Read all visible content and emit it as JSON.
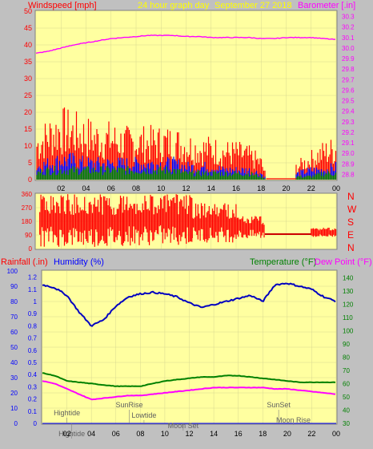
{
  "header": {
    "title": "24 hour graph day",
    "date": "September 27 2018",
    "left_axis_title": "Windspeed [mph]",
    "right_axis_title": "Barometer [.in]"
  },
  "direction_labels": [
    "N",
    "W",
    "S",
    "E",
    "N"
  ],
  "bottom_titles": {
    "rainfall": "Rainfall (.in)",
    "humidity": "Humidity (%)",
    "temperature": "Temperature (°F)",
    "dewpoint": "Dew Point (°F)"
  },
  "events": [
    {
      "label": "Hightide",
      "hour": 2.0
    },
    {
      "label": "SunRise",
      "hour": 7.1
    },
    {
      "label": "Lowtide",
      "hour": 8.3
    },
    {
      "label": "Moon Set",
      "hour": 11.5
    },
    {
      "label": "SunSet",
      "hour": 19.3
    },
    {
      "label": "Moon Rise",
      "hour": 20.5
    },
    {
      "label": "Hightide",
      "hour": 2.4
    }
  ],
  "colors": {
    "plot_bg": "#ffffa0",
    "frame_bg": "#c0c0c0",
    "wind_gust": "#ff0000",
    "wind_avg": "#0000ff",
    "wind_low": "#008000",
    "barometer": "#ff00ff",
    "humidity": "#0000c0",
    "temperature": "#008000",
    "dewpoint": "#ff00ff",
    "header_text": "#ffff00",
    "rain_axis": "#0000ff"
  },
  "chart_data": [
    {
      "type": "area",
      "name": "wind",
      "x_ticks": [
        "02",
        "04",
        "06",
        "08",
        "10",
        "12",
        "14",
        "16",
        "18",
        "20",
        "22",
        "00"
      ],
      "y_ticks_left": [
        0,
        5,
        10,
        15,
        20,
        25,
        30,
        35,
        40,
        45,
        50
      ],
      "y_ticks_right": [
        28.8,
        28.9,
        29.0,
        29.1,
        29.2,
        29.3,
        29.4,
        29.5,
        29.6,
        29.7,
        29.8,
        29.9,
        30.0,
        30.1,
        30.2,
        30.3
      ],
      "ylim_left": [
        0,
        50
      ],
      "ylim_right": [
        28.75,
        30.35
      ],
      "xlim_hours": [
        0,
        24
      ],
      "series": [
        {
          "name": "gust",
          "hours": [
            0,
            1,
            2,
            3,
            4,
            5,
            6,
            7,
            8,
            9,
            10,
            11,
            12,
            13,
            14,
            15,
            16,
            17,
            18,
            18.5,
            21,
            22,
            23,
            24
          ],
          "values": [
            10,
            13,
            15,
            14,
            13,
            12,
            12,
            11,
            11,
            11,
            11,
            11,
            10,
            9,
            9,
            8,
            8,
            7,
            5,
            0,
            4,
            6,
            8,
            9
          ]
        },
        {
          "name": "average",
          "hours": [
            0,
            1,
            2,
            3,
            4,
            5,
            6,
            7,
            8,
            9,
            10,
            11,
            12,
            13,
            14,
            15,
            16,
            17,
            18,
            18.5,
            21,
            22,
            23,
            24
          ],
          "values": [
            4,
            5,
            6,
            6,
            5,
            5,
            5,
            5,
            5,
            5,
            5,
            5,
            4,
            4,
            4,
            3,
            3,
            3,
            2,
            0,
            2,
            3,
            3,
            4
          ]
        },
        {
          "name": "low",
          "hours": [
            0,
            1,
            2,
            3,
            4,
            5,
            6,
            7,
            8,
            9,
            10,
            11,
            12,
            13,
            14,
            15,
            16,
            17,
            18,
            18.5,
            21,
            22,
            23,
            24
          ],
          "values": [
            2,
            3,
            3,
            3,
            3,
            3,
            3,
            3,
            3,
            3,
            3,
            3,
            2,
            2,
            2,
            2,
            2,
            2,
            1,
            0,
            1,
            1,
            2,
            2
          ]
        },
        {
          "name": "barometer",
          "hours": [
            0,
            1,
            2,
            3,
            4,
            5,
            6,
            7,
            8,
            9,
            10,
            11,
            12,
            13,
            14,
            15,
            16,
            17,
            18,
            19,
            20,
            21,
            22,
            23,
            24
          ],
          "values": [
            29.95,
            29.97,
            30.0,
            30.03,
            30.05,
            30.07,
            30.09,
            30.1,
            30.11,
            30.12,
            30.12,
            30.12,
            30.11,
            30.11,
            30.1,
            30.1,
            30.1,
            30.1,
            30.09,
            30.09,
            30.1,
            30.1,
            30.1,
            30.09,
            30.08
          ]
        }
      ]
    },
    {
      "type": "scatter",
      "name": "wind_direction",
      "y_ticks": [
        0,
        90,
        180,
        270,
        360
      ],
      "ylim": [
        0,
        360
      ],
      "xlim_hours": [
        0,
        24
      ],
      "spans": [
        {
          "from": 0.3,
          "to": 7.0,
          "low": 10,
          "high": 360
        },
        {
          "from": 7.0,
          "to": 12.5,
          "low": 20,
          "high": 360
        },
        {
          "from": 12.5,
          "to": 16.0,
          "low": 40,
          "high": 300
        },
        {
          "from": 16.0,
          "to": 18.3,
          "low": 60,
          "high": 220
        }
      ],
      "calm": {
        "from": 18.3,
        "to": 22.0,
        "value": 95
      },
      "tail": {
        "from": 22.0,
        "to": 24.0,
        "low": 75,
        "high": 140
      }
    },
    {
      "type": "line",
      "name": "climate",
      "x_ticks": [
        "02",
        "04",
        "06",
        "08",
        "10",
        "12",
        "14",
        "16",
        "18",
        "20",
        "22",
        "00"
      ],
      "rain_ticks": [
        0,
        0.1,
        0.2,
        0.3,
        0.4,
        0.5,
        0.6,
        0.7,
        0.8,
        0.9,
        1,
        1.1,
        1.2
      ],
      "humidity_ticks": [
        0,
        10,
        20,
        30,
        40,
        50,
        60,
        70,
        80,
        90,
        100
      ],
      "temp_ticks": [
        30,
        40,
        50,
        60,
        70,
        80,
        90,
        100,
        110,
        120,
        130,
        140
      ],
      "ylim_humidity": [
        0,
        100
      ],
      "ylim_temp": [
        30,
        145
      ],
      "xlim_hours": [
        0,
        24
      ],
      "series": [
        {
          "name": "Humidity (%)",
          "hours": [
            0,
            1,
            2,
            3,
            4,
            5,
            6,
            7,
            8,
            9,
            10,
            11,
            12,
            13,
            14,
            15,
            16,
            17,
            18,
            19,
            20,
            21,
            22,
            23,
            24
          ],
          "values": [
            91,
            89,
            84,
            73,
            64,
            68,
            77,
            83,
            85,
            86,
            85,
            83,
            79,
            76,
            78,
            80,
            82,
            84,
            80,
            91,
            92,
            90,
            88,
            83,
            80
          ]
        },
        {
          "name": "Temperature (°F)",
          "hours": [
            0,
            1,
            2,
            3,
            4,
            5,
            6,
            7,
            8,
            9,
            10,
            11,
            12,
            13,
            14,
            15,
            16,
            17,
            18,
            19,
            20,
            21,
            22,
            23,
            24
          ],
          "values": [
            68,
            66,
            62,
            61,
            60,
            59,
            58,
            58,
            58,
            60,
            62,
            63,
            64,
            65,
            65,
            66,
            66,
            65,
            64,
            63,
            62,
            61,
            61,
            61,
            61
          ]
        },
        {
          "name": "Dew Point (°F)",
          "hours": [
            0,
            1,
            2,
            3,
            4,
            5,
            6,
            7,
            8,
            9,
            10,
            11,
            12,
            13,
            14,
            15,
            16,
            17,
            18,
            19,
            20,
            21,
            22,
            23,
            24
          ],
          "values": [
            62,
            60,
            56,
            52,
            48,
            49,
            50,
            51,
            51,
            52,
            53,
            54,
            55,
            56,
            57,
            57,
            57,
            57,
            57,
            56,
            56,
            55,
            54,
            53,
            52
          ]
        },
        {
          "name": "Rainfall (.in)",
          "hours": [
            0,
            24
          ],
          "values": [
            0,
            0
          ]
        }
      ]
    }
  ]
}
